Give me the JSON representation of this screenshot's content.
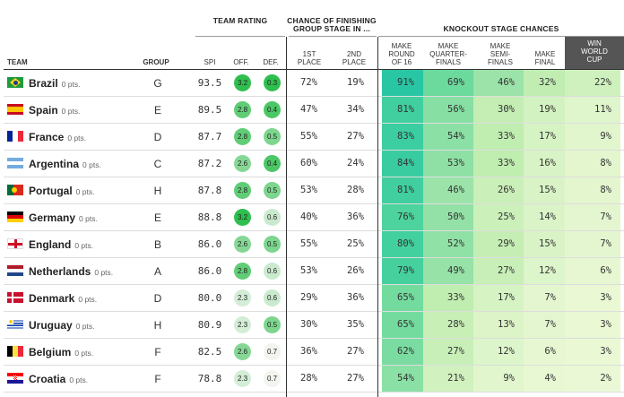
{
  "header": {
    "team_rating": "TEAM RATING",
    "chance_title_1": "CHANCE OF FINISHING",
    "chance_title_2": "GROUP STAGE IN ...",
    "knockout_title": "KNOCKOUT STAGE CHANCES",
    "team": "TEAM",
    "group": "GROUP",
    "spi": "SPI",
    "off": "OFF.",
    "def": "DEF.",
    "first_1": "1ST",
    "first_2": "PLACE",
    "second_1": "2ND",
    "second_2": "PLACE",
    "r16_1": "MAKE",
    "r16_2": "ROUND",
    "r16_3": "OF 16",
    "qf_1": "MAKE",
    "qf_2": "QUARTER-",
    "qf_3": "FINALS",
    "sf_1": "MAKE",
    "sf_2": "SEMI-",
    "sf_3": "FINALS",
    "final_1": "MAKE",
    "final_2": "FINAL",
    "win_1": "WIN",
    "win_2": "WORLD",
    "win_3": "CUP"
  },
  "teams": [
    {
      "name": "Brazil",
      "pts": "0 pts.",
      "flag": "brazil",
      "group": "G",
      "spi": "93.5",
      "off": "3.2",
      "def": "0.3",
      "first": "72%",
      "second": "19%",
      "r16": "91%",
      "qf": "69%",
      "sf": "46%",
      "final": "32%",
      "win": "22%",
      "off_level": 1.0,
      "def_level": 1.0,
      "r16_level": 0.91,
      "qf_level": 0.69,
      "sf_level": 0.46,
      "final_level": 0.32,
      "win_level": 0.22
    },
    {
      "name": "Spain",
      "pts": "0 pts.",
      "flag": "spain",
      "group": "E",
      "spi": "89.5",
      "off": "2.8",
      "def": "0.4",
      "first": "47%",
      "second": "34%",
      "r16": "81%",
      "qf": "56%",
      "sf": "30%",
      "final": "19%",
      "win": "11%",
      "off_level": 0.75,
      "def_level": 0.85,
      "r16_level": 0.81,
      "qf_level": 0.56,
      "sf_level": 0.3,
      "final_level": 0.19,
      "win_level": 0.11
    },
    {
      "name": "France",
      "pts": "0 pts.",
      "flag": "france",
      "group": "D",
      "spi": "87.7",
      "off": "2.8",
      "def": "0.5",
      "first": "55%",
      "second": "27%",
      "r16": "83%",
      "qf": "54%",
      "sf": "33%",
      "final": "17%",
      "win": "9%",
      "off_level": 0.75,
      "def_level": 0.6,
      "r16_level": 0.83,
      "qf_level": 0.54,
      "sf_level": 0.33,
      "final_level": 0.17,
      "win_level": 0.09
    },
    {
      "name": "Argentina",
      "pts": "0 pts.",
      "flag": "argentina",
      "group": "C",
      "spi": "87.2",
      "off": "2.6",
      "def": "0.4",
      "first": "60%",
      "second": "24%",
      "r16": "84%",
      "qf": "53%",
      "sf": "33%",
      "final": "16%",
      "win": "8%",
      "off_level": 0.55,
      "def_level": 0.85,
      "r16_level": 0.84,
      "qf_level": 0.53,
      "sf_level": 0.33,
      "final_level": 0.16,
      "win_level": 0.08
    },
    {
      "name": "Portugal",
      "pts": "0 pts.",
      "flag": "portugal",
      "group": "H",
      "spi": "87.8",
      "off": "2.8",
      "def": "0.5",
      "first": "53%",
      "second": "28%",
      "r16": "81%",
      "qf": "46%",
      "sf": "26%",
      "final": "15%",
      "win": "8%",
      "off_level": 0.75,
      "def_level": 0.6,
      "r16_level": 0.81,
      "qf_level": 0.46,
      "sf_level": 0.26,
      "final_level": 0.15,
      "win_level": 0.08
    },
    {
      "name": "Germany",
      "pts": "0 pts.",
      "flag": "germany",
      "group": "E",
      "spi": "88.8",
      "off": "3.2",
      "def": "0.6",
      "first": "40%",
      "second": "36%",
      "r16": "76%",
      "qf": "50%",
      "sf": "25%",
      "final": "14%",
      "win": "7%",
      "off_level": 1.0,
      "def_level": 0.2,
      "r16_level": 0.76,
      "qf_level": 0.5,
      "sf_level": 0.25,
      "final_level": 0.14,
      "win_level": 0.07
    },
    {
      "name": "England",
      "pts": "0 pts.",
      "flag": "england",
      "group": "B",
      "spi": "86.0",
      "off": "2.6",
      "def": "0.5",
      "first": "55%",
      "second": "25%",
      "r16": "80%",
      "qf": "52%",
      "sf": "29%",
      "final": "15%",
      "win": "7%",
      "off_level": 0.55,
      "def_level": 0.6,
      "r16_level": 0.8,
      "qf_level": 0.52,
      "sf_level": 0.29,
      "final_level": 0.15,
      "win_level": 0.07
    },
    {
      "name": "Netherlands",
      "pts": "0 pts.",
      "flag": "netherlands",
      "group": "A",
      "spi": "86.0",
      "off": "2.8",
      "def": "0.6",
      "first": "53%",
      "second": "26%",
      "r16": "79%",
      "qf": "49%",
      "sf": "27%",
      "final": "12%",
      "win": "6%",
      "off_level": 0.75,
      "def_level": 0.2,
      "r16_level": 0.79,
      "qf_level": 0.49,
      "sf_level": 0.27,
      "final_level": 0.12,
      "win_level": 0.06
    },
    {
      "name": "Denmark",
      "pts": "0 pts.",
      "flag": "denmark",
      "group": "D",
      "spi": "80.0",
      "off": "2.3",
      "def": "0.6",
      "first": "29%",
      "second": "36%",
      "r16": "65%",
      "qf": "33%",
      "sf": "17%",
      "final": "7%",
      "win": "3%",
      "off_level": 0.15,
      "def_level": 0.2,
      "r16_level": 0.65,
      "qf_level": 0.33,
      "sf_level": 0.17,
      "final_level": 0.07,
      "win_level": 0.03
    },
    {
      "name": "Uruguay",
      "pts": "0 pts.",
      "flag": "uruguay",
      "group": "H",
      "spi": "80.9",
      "off": "2.3",
      "def": "0.5",
      "first": "30%",
      "second": "35%",
      "r16": "65%",
      "qf": "28%",
      "sf": "13%",
      "final": "7%",
      "win": "3%",
      "off_level": 0.15,
      "def_level": 0.6,
      "r16_level": 0.65,
      "qf_level": 0.28,
      "sf_level": 0.13,
      "final_level": 0.07,
      "win_level": 0.03
    },
    {
      "name": "Belgium",
      "pts": "0 pts.",
      "flag": "belgium",
      "group": "F",
      "spi": "82.5",
      "off": "2.6",
      "def": "0.7",
      "first": "36%",
      "second": "27%",
      "r16": "62%",
      "qf": "27%",
      "sf": "12%",
      "final": "6%",
      "win": "3%",
      "off_level": 0.55,
      "def_level": 0.0,
      "r16_level": 0.62,
      "qf_level": 0.27,
      "sf_level": 0.12,
      "final_level": 0.06,
      "win_level": 0.03
    },
    {
      "name": "Croatia",
      "pts": "0 pts.",
      "flag": "croatia",
      "group": "F",
      "spi": "78.8",
      "off": "2.3",
      "def": "0.7",
      "first": "28%",
      "second": "27%",
      "r16": "54%",
      "qf": "21%",
      "sf": "9%",
      "final": "4%",
      "win": "2%",
      "off_level": 0.15,
      "def_level": 0.0,
      "r16_level": 0.54,
      "qf_level": 0.21,
      "sf_level": 0.09,
      "final_level": 0.04,
      "win_level": 0.02
    }
  ]
}
